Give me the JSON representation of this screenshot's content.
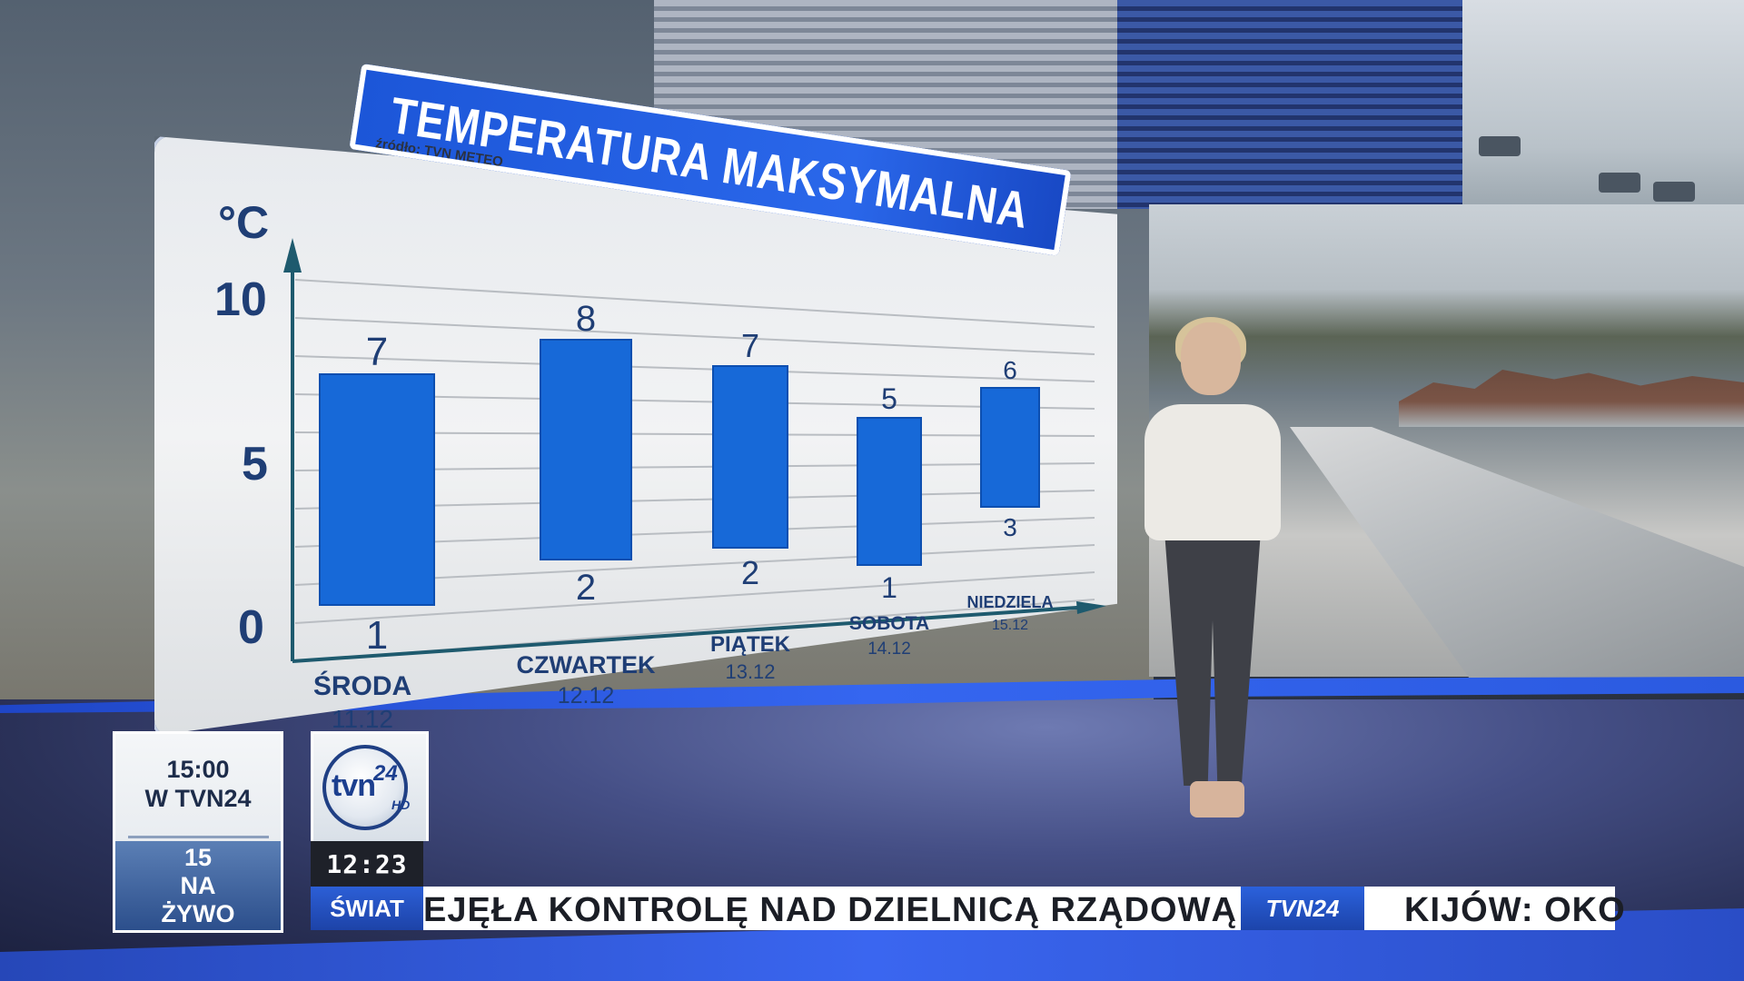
{
  "chart_data": {
    "type": "bar",
    "title": "TEMPERATURA MAKSYMALNA",
    "source": "źródło: TVN METEO",
    "unit": "°C",
    "y_ticks": [
      "0",
      "5",
      "10"
    ],
    "ylim": [
      0,
      10
    ],
    "categories": [
      {
        "day": "ŚRODA",
        "date": "11.12"
      },
      {
        "day": "CZWARTEK",
        "date": "12.12"
      },
      {
        "day": "PIĄTEK",
        "date": "13.12"
      },
      {
        "day": "SOBOTA",
        "date": "14.12"
      },
      {
        "day": "NIEDZIELA",
        "date": "15.12"
      }
    ],
    "series": [
      {
        "name": "",
        "low": [
          1,
          2,
          2,
          1,
          3
        ],
        "high": [
          7,
          8,
          7,
          5,
          6
        ]
      }
    ],
    "colors": {
      "bar": "#1769d8",
      "axis": "#20406e",
      "label": "#1f3e75"
    }
  },
  "promo": {
    "time": "15:00",
    "channel": "W TVN24",
    "line1": "15",
    "line2": "NA",
    "line3": "ŻYWO"
  },
  "logo": {
    "text": "tvn",
    "number": "24",
    "hd": "HD"
  },
  "clock": "12:23",
  "ticker": {
    "category": "ŚWIAT",
    "headline": "EJĘŁA KONTROLĘ NAD DZIELNICĄ RZĄDOWĄ",
    "brand": "TVN24",
    "next": "KIJÓW: OKO"
  }
}
